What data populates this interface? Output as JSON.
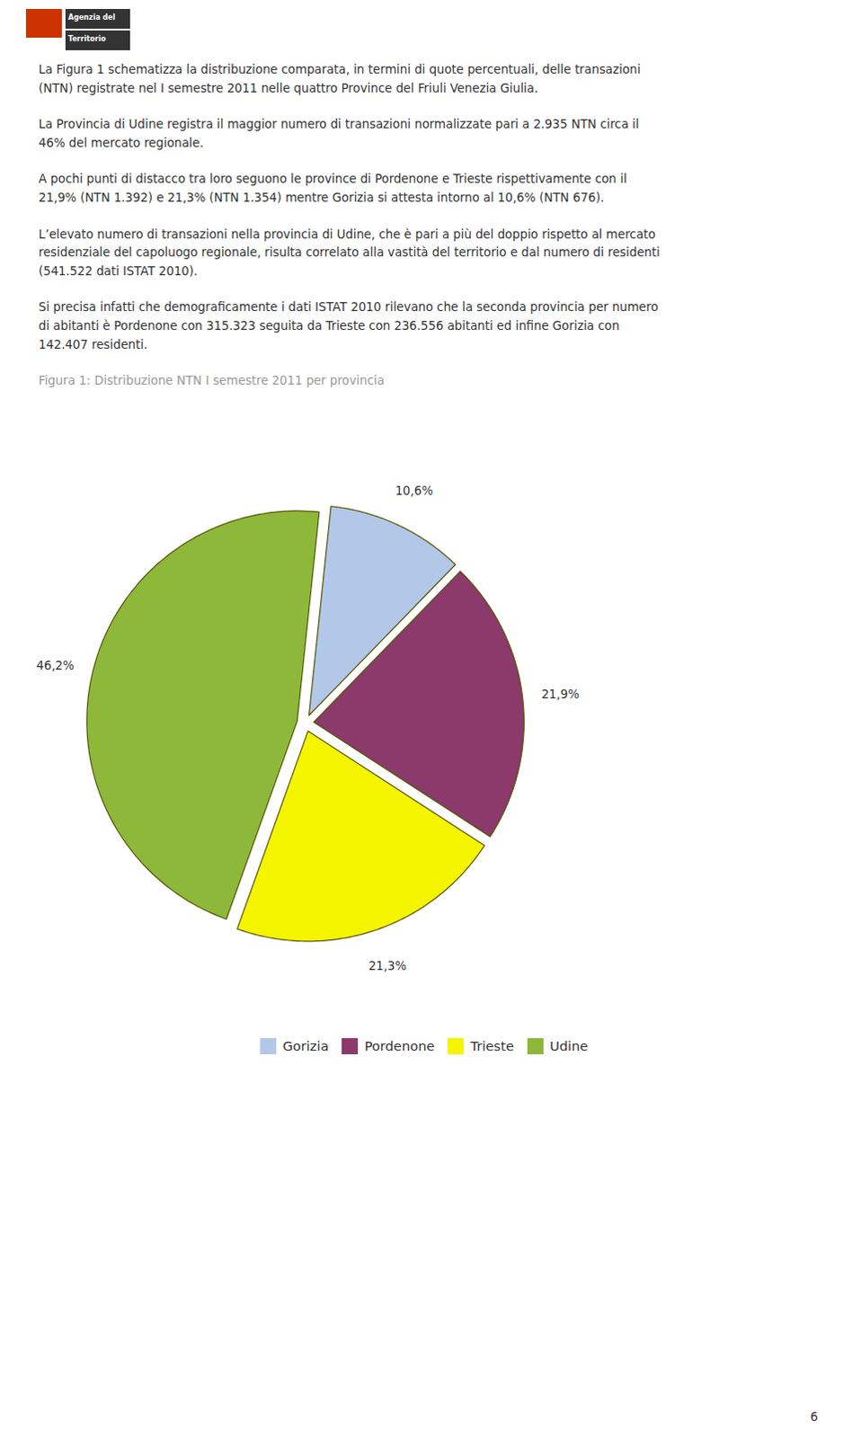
{
  "chart_data": {
    "type": "pie",
    "title": "Figura 1: Distribuzione NTN I semestre 2011 per provincia",
    "categories": [
      "Gorizia",
      "Pordenone",
      "Trieste",
      "Udine"
    ],
    "values": [
      10.6,
      21.9,
      21.3,
      46.2
    ],
    "value_labels": [
      "10,6%",
      "21,9%",
      "21,3%",
      "46,2%"
    ],
    "colors": [
      "#b3c7e8",
      "#8b3a6b",
      "#f5f500",
      "#8db83a"
    ],
    "data_labels": true,
    "legend": "bottom",
    "annotations": [
      "La Figura 1 schematizza la distribuzione comparata, in termini di quote percentuali, delle transazioni\n(NTN) registrate nel I semestre 2011 nelle quattro Province del Friuli Venezia Giulia.",
      "La Provincia di Udine registra il maggior numero di transazioni normalizzate pari a 2.935 NTN circa il\n46% del mercato regionale.",
      "A pochi punti di distacco tra loro seguono le province di Pordenone e Trieste rispettivamente con il\n21,9% (NTN 1.392) e 21,3% (NTN 1.354) mentre Gorizia si attesta intorno al 10,6% (NTN 676).",
      "L’elevato numero di transazioni nella provincia di Udine, che è pari a più del doppio rispetto al mercato\nresidenziale del capoluogo regionale, risulta correlato alla vastità del territorio e dal numero di residenti\n(541.522 dati ISTAT  2010).",
      "Si precisa infatti che demograficamente i dati ISTAT 2010 rilevano che la seconda provincia per numero\ndi abitanti è Pordenone con 315.323 seguita da Trieste con 236.556 abitanti ed infine Gorizia con\n142.407 residenti.",
      "Agenzia del",
      "Territorio",
      "6"
    ]
  }
}
